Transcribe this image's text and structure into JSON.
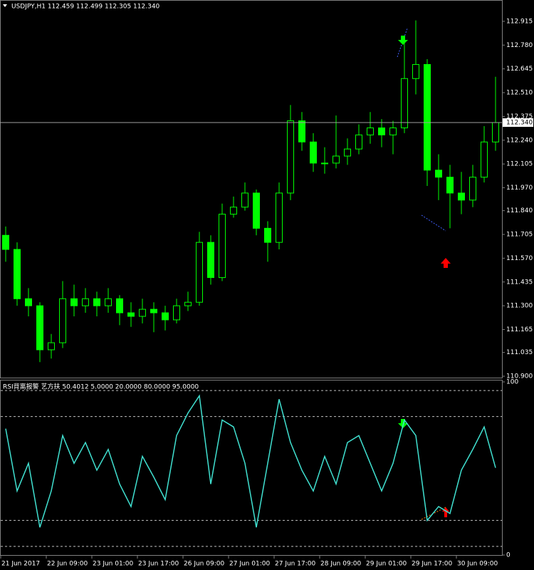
{
  "chart_data": {
    "type": "candlestick",
    "title": "USDJPY,H1  112.459 112.499 112.305 112.340",
    "categories": [
      "21 Jun 2017",
      null,
      null,
      null,
      "22 Jun 09:00",
      null,
      null,
      null,
      "23 Jun 01:00",
      null,
      null,
      null,
      "23 Jun 17:00",
      null,
      null,
      null,
      "26 Jun 09:00",
      null,
      null,
      null,
      "27 Jun 01:00",
      null,
      null,
      null,
      "27 Jun 17:00",
      null,
      null,
      null,
      "28 Jun 09:00",
      null,
      null,
      null,
      "29 Jun 01:00",
      null,
      null,
      null,
      "29 Jun 17:00",
      null,
      null,
      null,
      "30 Jun 09:00",
      null,
      null,
      null
    ],
    "open": [
      111.7,
      111.62,
      111.34,
      111.3,
      111.05,
      111.09,
      111.34,
      111.3,
      111.34,
      111.3,
      111.34,
      111.26,
      111.24,
      111.28,
      111.26,
      111.22,
      111.3,
      111.32,
      111.66,
      111.46,
      111.82,
      111.86,
      111.94,
      111.74,
      111.66,
      111.94,
      112.35,
      112.23,
      112.11,
      112.11,
      112.15,
      112.19,
      112.27,
      112.31,
      112.27,
      112.31,
      112.59,
      112.67,
      112.07,
      112.03,
      111.94,
      111.9,
      112.03,
      112.23
    ],
    "high": [
      111.75,
      111.66,
      111.4,
      111.32,
      111.14,
      111.44,
      111.42,
      111.4,
      111.38,
      111.4,
      111.36,
      111.32,
      111.34,
      111.32,
      111.3,
      111.34,
      111.38,
      111.72,
      111.7,
      111.88,
      111.92,
      112.0,
      111.96,
      111.78,
      112.0,
      112.44,
      112.4,
      112.28,
      112.2,
      112.38,
      112.25,
      112.33,
      112.4,
      112.36,
      112.35,
      112.8,
      112.92,
      112.7,
      112.16,
      112.1,
      112.06,
      112.1,
      112.32,
      112.6
    ],
    "low": [
      111.55,
      111.3,
      111.24,
      110.98,
      111.0,
      111.06,
      111.24,
      111.26,
      111.24,
      111.26,
      111.19,
      111.18,
      111.2,
      111.15,
      111.16,
      111.2,
      111.27,
      111.3,
      111.42,
      111.44,
      111.8,
      111.84,
      111.7,
      111.55,
      111.62,
      111.9,
      112.18,
      112.06,
      112.05,
      112.08,
      112.1,
      112.16,
      112.22,
      112.2,
      112.16,
      112.28,
      112.5,
      111.98,
      111.9,
      111.74,
      111.82,
      111.86,
      112.0,
      112.18
    ],
    "close": [
      111.62,
      111.34,
      111.3,
      111.05,
      111.09,
      111.34,
      111.3,
      111.34,
      111.3,
      111.34,
      111.26,
      111.24,
      111.28,
      111.26,
      111.22,
      111.3,
      111.32,
      111.66,
      111.46,
      111.82,
      111.86,
      111.94,
      111.74,
      111.66,
      111.94,
      112.35,
      112.23,
      112.11,
      112.11,
      112.15,
      112.19,
      112.27,
      112.31,
      112.27,
      112.31,
      112.59,
      112.67,
      112.07,
      112.03,
      111.94,
      111.9,
      112.03,
      112.23,
      112.34
    ],
    "color": "#00ff00",
    "ylim": [
      110.892,
      113.036
    ],
    "yticks": [
      {
        "value": 112.915,
        "label": "112.915"
      },
      {
        "value": 112.78,
        "label": "112.780"
      },
      {
        "value": 112.645,
        "label": "112.645"
      },
      {
        "value": 112.51,
        "label": "112.510"
      },
      {
        "value": 112.375,
        "label": "112.375"
      },
      {
        "value": 112.24,
        "label": "112.240"
      },
      {
        "value": 112.105,
        "label": "112.105"
      },
      {
        "value": 111.97,
        "label": "111.970"
      },
      {
        "value": 111.84,
        "label": "111.840"
      },
      {
        "value": 111.705,
        "label": "111.705"
      },
      {
        "value": 111.57,
        "label": "111.570"
      },
      {
        "value": 111.435,
        "label": "111.435"
      },
      {
        "value": 111.3,
        "label": "111.300"
      },
      {
        "value": 111.165,
        "label": "111.165"
      },
      {
        "value": 111.035,
        "label": "111.035"
      },
      {
        "value": 110.9,
        "label": "110.900"
      }
    ],
    "current_price": {
      "value": 112.34,
      "label": "112.340"
    },
    "indicator": {
      "type": "line",
      "title": "RSI背离报警 艺方扶 50.4012 5.0000 20.0000 80.0000 95.0000",
      "values": [
        73,
        37,
        53,
        16,
        37,
        69,
        53,
        65,
        49,
        61,
        41,
        28,
        57,
        45,
        32,
        69,
        82,
        92,
        41,
        78,
        74,
        53,
        16,
        53,
        90,
        65,
        49,
        37,
        57,
        41,
        65,
        69,
        53,
        37,
        53,
        78,
        69,
        20,
        28,
        24,
        49,
        61,
        74,
        50.4012
      ],
      "color": "#40e0d0",
      "ylim": [
        0,
        100
      ],
      "yticks": [
        0,
        100
      ],
      "levels": [
        5,
        20,
        80,
        95
      ]
    }
  }
}
